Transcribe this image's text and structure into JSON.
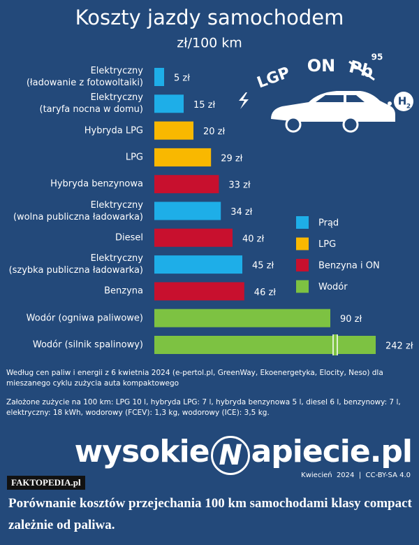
{
  "chart_data": {
    "type": "hbar",
    "title": "Koszty jazdy samochodem",
    "subtitle": "zł/100 km",
    "categories": [
      "Elektryczny\n(ładowanie z fotowoltaiki)",
      "Elektryczny\n(taryfa nocna w domu)",
      "Hybryda LPG",
      "LPG",
      "Hybryda benzynowa",
      "Elektryczny\n(wolna publiczna ładowarka)",
      "Diesel",
      "Elektryczny\n(szybka publiczna ładowarka)",
      "Benzyna",
      "Wodór (ogniwa paliwowe)",
      "Wodór (silnik spalinowy)"
    ],
    "values": [
      5,
      15,
      20,
      29,
      33,
      34,
      40,
      45,
      46,
      90,
      242
    ],
    "value_labels": [
      "5 zł",
      "15 zł",
      "20 zł",
      "29 zł",
      "33 zł",
      "34 zł",
      "40 zł",
      "45 zł",
      "46 zł",
      "90 zł",
      "242 zł"
    ],
    "colors": [
      "#1eaee8",
      "#1eaee8",
      "#f9b800",
      "#f9b800",
      "#c8102e",
      "#1eaee8",
      "#c8102e",
      "#1eaee8",
      "#c8102e",
      "#7dc242",
      "#7dc242"
    ],
    "legend": [
      {
        "name": "Prąd",
        "color": "#1eaee8"
      },
      {
        "name": "LPG",
        "color": "#f9b800"
      },
      {
        "name": "Benzyna i ON",
        "color": "#c8102e"
      },
      {
        "name": "Wodór",
        "color": "#7dc242"
      }
    ],
    "annotations": [
      "LGP",
      "ON",
      "Pb",
      "95",
      "H",
      "2"
    ]
  },
  "notes": [
    "Według cen paliw i energii z 6 kwietnia 2024 (e-pertol.pl, GreenWay, Ekoenergetyka, Elocity, Neso) dla mieszanego cyklu zużycia auta kompaktowego",
    "Założone zużycie na 100 km: LPG 10 l, hybryda LPG: 7 l, hybryda benzynowa 5 l,  diesel 6 l, benzynowy: 7 l, elektryczny: 18 kWh, wodorowy (FCEV): 1,3 kg, wodorowy (ICE): 3,5 kg."
  ],
  "logo": [
    "wysokie",
    "N",
    "apiecie.pl"
  ],
  "footer": "Kwiecień  2024  |  CC-BY-SA 4.0",
  "watermark": "FAKTOPEDIA.pl",
  "caption": "Porównanie kosztów przejechania 100 km samochodami klasy compact zależnie od paliwa."
}
